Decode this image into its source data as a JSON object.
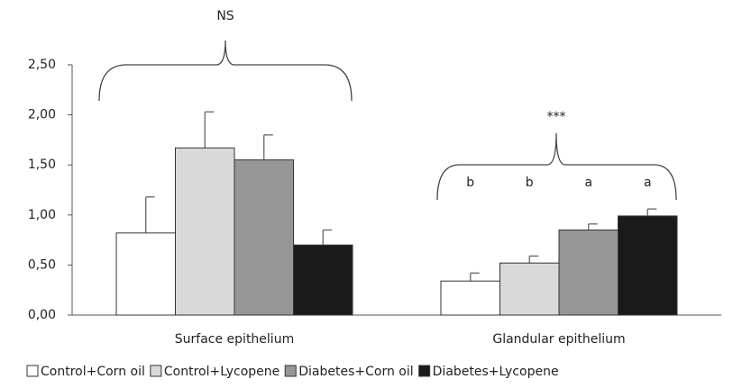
{
  "chart_data": {
    "type": "bar",
    "categories": [
      "Surface epithelium",
      "Glandular epithelium"
    ],
    "series": [
      {
        "name": "Control+Corn oil",
        "color": "#ffffff",
        "values": [
          0.82,
          0.34
        ],
        "errors": [
          0.36,
          0.08
        ]
      },
      {
        "name": "Control+Lycopene",
        "color": "#d9d9d9",
        "values": [
          1.67,
          0.52
        ],
        "errors": [
          0.36,
          0.07
        ]
      },
      {
        "name": "Diabetes+Corn oil",
        "color": "#969696",
        "values": [
          1.55,
          0.85
        ],
        "errors": [
          0.25,
          0.06
        ]
      },
      {
        "name": "Diabetes+Lycopene",
        "color": "#1a1a1a",
        "values": [
          0.7,
          0.99
        ],
        "errors": [
          0.15,
          0.07
        ]
      }
    ],
    "ylim": [
      0,
      2.5
    ],
    "yticks": [
      {
        "value": 0,
        "label": "0,00"
      },
      {
        "value": 0.5,
        "label": "0,50"
      },
      {
        "value": 1,
        "label": "1,00"
      },
      {
        "value": 1.5,
        "label": "1,50"
      },
      {
        "value": 2,
        "label": "2,00"
      },
      {
        "value": 2.5,
        "label": "2,50"
      }
    ],
    "annotations": [
      "NS",
      "***"
    ],
    "group_letters": [
      "b",
      "b",
      "a",
      "a"
    ],
    "legend": "bottom"
  }
}
